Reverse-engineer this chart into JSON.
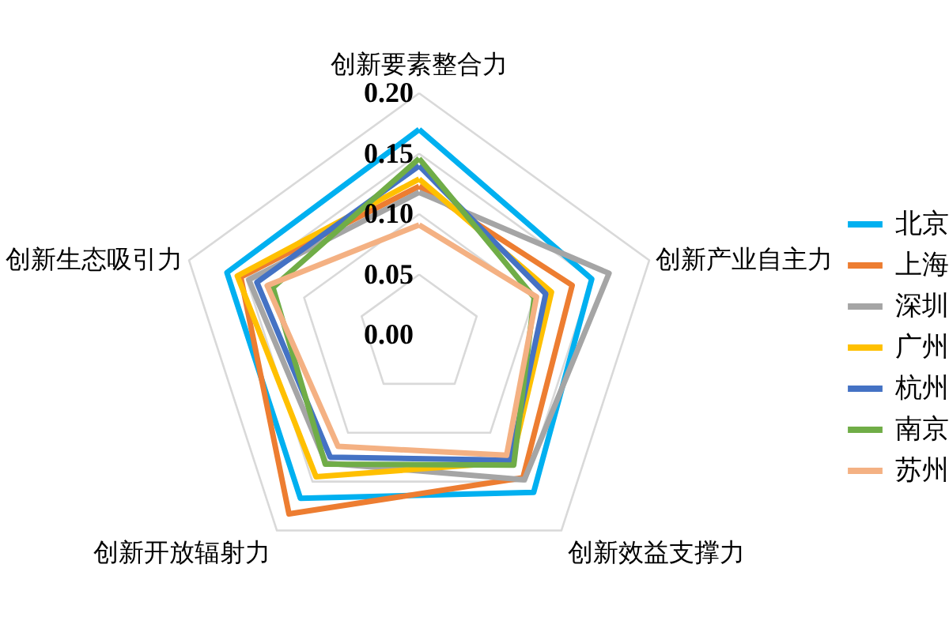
{
  "chart_data": {
    "type": "radar",
    "categories": [
      "创新要素整合力",
      "创新产业自主力",
      "创新效益支撑力",
      "创新开放辐射力",
      "创新生态吸引力"
    ],
    "series": [
      {
        "name": "北京",
        "color": "#00b0f0",
        "values": [
          0.17,
          0.15,
          0.161,
          0.167,
          0.167
        ]
      },
      {
        "name": "上海",
        "color": "#ed7d31",
        "values": [
          0.123,
          0.133,
          0.146,
          0.183,
          0.155
        ]
      },
      {
        "name": "深圳",
        "color": "#a5a5a5",
        "values": [
          0.118,
          0.165,
          0.148,
          0.131,
          0.148
        ]
      },
      {
        "name": "广州",
        "color": "#ffc000",
        "values": [
          0.129,
          0.115,
          0.13,
          0.145,
          0.158
        ]
      },
      {
        "name": "杭州",
        "color": "#4472c4",
        "values": [
          0.14,
          0.11,
          0.128,
          0.125,
          0.141
        ]
      },
      {
        "name": "南京",
        "color": "#70ad47",
        "values": [
          0.146,
          0.1,
          0.133,
          0.132,
          0.127
        ]
      },
      {
        "name": "苏州",
        "color": "#f4b183",
        "values": [
          0.091,
          0.102,
          0.123,
          0.114,
          0.132
        ]
      }
    ],
    "ylim": [
      0,
      0.2
    ],
    "yticks": [
      {
        "value": 0,
        "label": "0.00"
      },
      {
        "value": 0.05,
        "label": "0.05"
      },
      {
        "value": 0.1,
        "label": "0.10"
      },
      {
        "value": 0.15,
        "label": "0.15"
      },
      {
        "value": 0.2,
        "label": "0.20"
      }
    ],
    "grid": true,
    "legend": "right"
  }
}
